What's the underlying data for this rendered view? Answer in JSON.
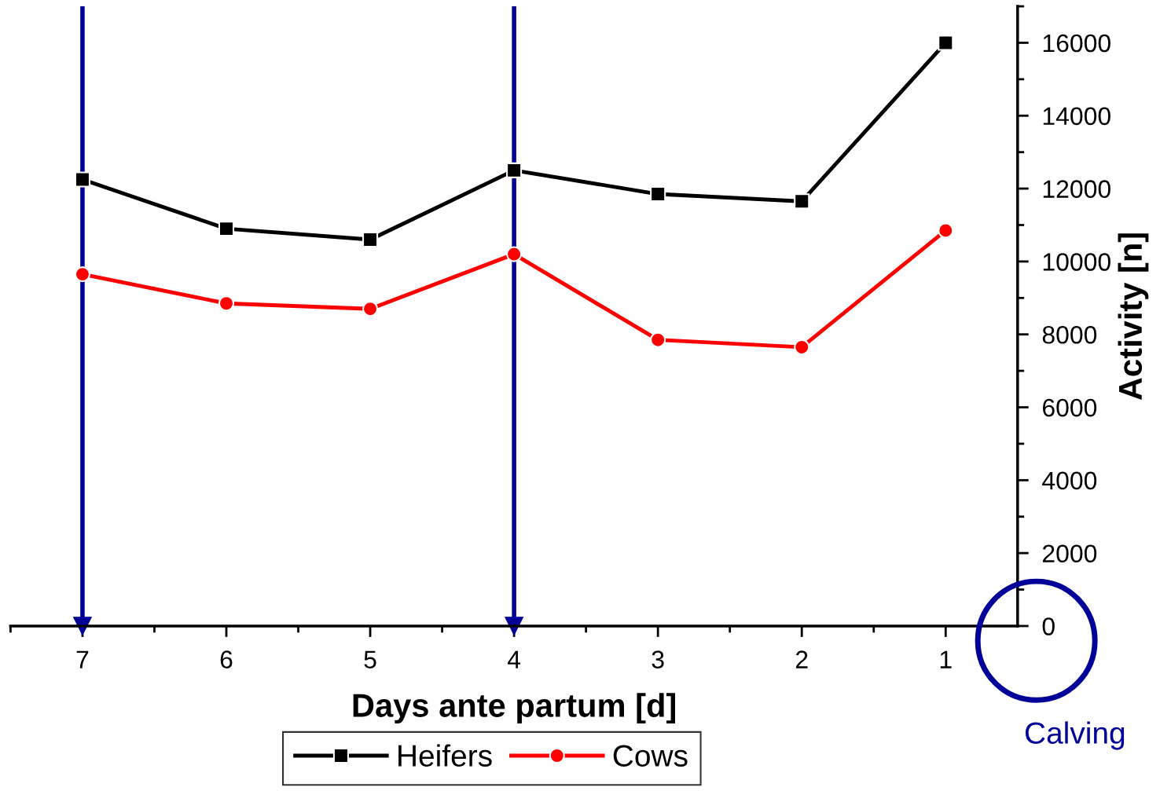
{
  "chart_data": {
    "type": "line",
    "xlabel": "Days ante partum [d]",
    "ylabel": "Activity [n]",
    "x": [
      7,
      6,
      5,
      4,
      3,
      2,
      1
    ],
    "series": [
      {
        "name": "Heifers",
        "color": "#000000",
        "marker": "square",
        "values": [
          12250,
          10900,
          10600,
          12500,
          11850,
          11650,
          16000
        ]
      },
      {
        "name": "Cows",
        "color": "#ff0000",
        "marker": "circle",
        "values": [
          9650,
          8850,
          8700,
          10200,
          7850,
          7650,
          10850
        ]
      }
    ],
    "xlim": [
      7.5,
      0.5
    ],
    "xticks": [
      7,
      6,
      5,
      4,
      3,
      2,
      1
    ],
    "ylim": [
      0,
      17000
    ],
    "yticks": [
      0,
      2000,
      4000,
      6000,
      8000,
      10000,
      12000,
      14000,
      16000
    ],
    "ref_lines": [
      {
        "axis": "x",
        "value": 7,
        "color": "#000099"
      },
      {
        "axis": "x",
        "value": 4,
        "color": "#000099"
      }
    ],
    "annotations": [
      "Calving"
    ],
    "grid": false,
    "legend": "bottom",
    "line_style": "solid"
  }
}
